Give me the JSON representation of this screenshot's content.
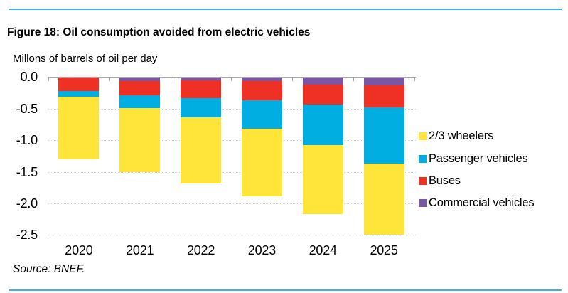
{
  "header": {
    "title": "Figure 18: Oil consumption avoided from electric vehicles"
  },
  "source_note": "Source: BNEF.",
  "colors": {
    "divider": "#3fb0e5",
    "wheelers": "#ffe539",
    "passenger": "#00aee2",
    "buses": "#ee3124",
    "commercial": "#7a57a5",
    "gridline": "#d6d6d6",
    "axis_line": "#a9a9a9",
    "text": "#000000"
  },
  "chart_data": {
    "type": "bar",
    "stacked": true,
    "orientation": "vertical-negative",
    "title": "Figure 18: Oil consumption avoided from electric vehicles",
    "unit_label": "Millons of barrels of oil per day",
    "xlabel": "",
    "ylabel": "Millons of barrels of oil per day",
    "categories": [
      "2020",
      "2021",
      "2022",
      "2023",
      "2024",
      "2025"
    ],
    "series": [
      {
        "name": "2/3 wheelers",
        "color": "#ffe539",
        "values": [
          -0.99,
          -1.02,
          -1.05,
          -1.07,
          -1.1,
          -1.13
        ]
      },
      {
        "name": "Passenger vehicles",
        "color": "#00aee2",
        "values": [
          -0.1,
          -0.2,
          -0.3,
          -0.45,
          -0.64,
          -0.89
        ]
      },
      {
        "name": "Buses",
        "color": "#ee3124",
        "values": [
          -0.21,
          -0.22,
          -0.28,
          -0.3,
          -0.32,
          -0.35
        ]
      },
      {
        "name": "Commercial vehicles",
        "color": "#7a57a5",
        "values": [
          0.0,
          -0.06,
          -0.05,
          -0.06,
          -0.11,
          -0.12
        ]
      }
    ],
    "stack_order_from_zero": [
      "Commercial vehicles",
      "Buses",
      "Passenger vehicles",
      "2/3 wheelers"
    ],
    "totals": [
      -1.3,
      -1.5,
      -1.68,
      -1.88,
      -2.17,
      -2.49
    ],
    "y_ticks": [
      0,
      -0.5,
      -1.0,
      -1.5,
      -2.0,
      -2.5
    ],
    "y_tick_labels": [
      "0.0",
      "-0.5",
      "-1.0",
      "-1.5",
      "-2.0",
      "-2.5"
    ],
    "ylim": [
      -2.5,
      0
    ],
    "grid": "horizontal-dotted",
    "legend_position": "right"
  }
}
